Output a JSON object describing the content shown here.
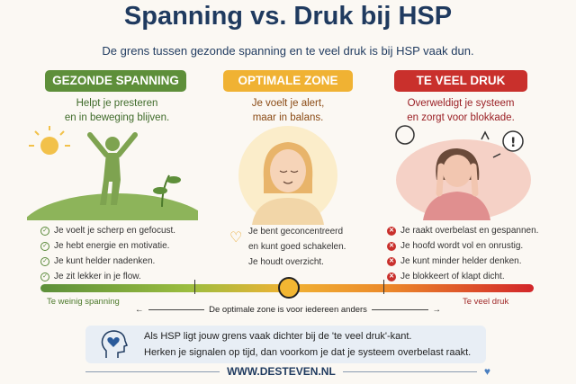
{
  "title": "Spanning vs. Druk bij HSP",
  "subtitle": "De grens tussen gezonde spanning en te veel druk is bij HSP vaak dun.",
  "colors": {
    "green": "#5e8f3a",
    "orange": "#f0b233",
    "red": "#c9302c",
    "navy": "#1f3a5f"
  },
  "columns": [
    {
      "badge": "GEZONDE SPANNING",
      "desc1": "Helpt je presteren",
      "desc2": "en in beweging blijven.",
      "icon": "check-circle-icon",
      "items": [
        "Je voelt je scherp en gefocust.",
        "Je hebt energie en motivatie.",
        "Je kunt helder nadenken.",
        "Je zit lekker in je flow."
      ]
    },
    {
      "badge": "OPTIMALE ZONE",
      "desc1": "Je voelt je alert,",
      "desc2": "maar in balans.",
      "icon": "heart-icon",
      "items": [
        "Je bent geconcentreerd",
        "en kunt goed schakelen.",
        "Je houdt overzicht."
      ]
    },
    {
      "badge": "TE VEEL DRUK",
      "desc1": "Overweldigt je systeem",
      "desc2": "en zorgt voor blokkade.",
      "icon": "x-circle-icon",
      "items": [
        "Je raakt overbelast en gespannen.",
        "Je hoofd wordt vol en onrustig.",
        "Je kunt minder helder denken.",
        "Je blokkeert of klapt dicht."
      ]
    }
  ],
  "scale": {
    "left_label": "Te weinig spanning",
    "right_label": "Te veel druk",
    "note": "De optimale zone is voor iedereen anders",
    "marker_position": 0.5
  },
  "info": {
    "line1": "Als HSP ligt jouw grens vaak dichter bij de 'te veel druk'-kant.",
    "line2": "Herken je signalen op tijd, dan voorkom je dat je systeem overbelast raakt."
  },
  "footer": "WWW.DESTEVEN.NL"
}
